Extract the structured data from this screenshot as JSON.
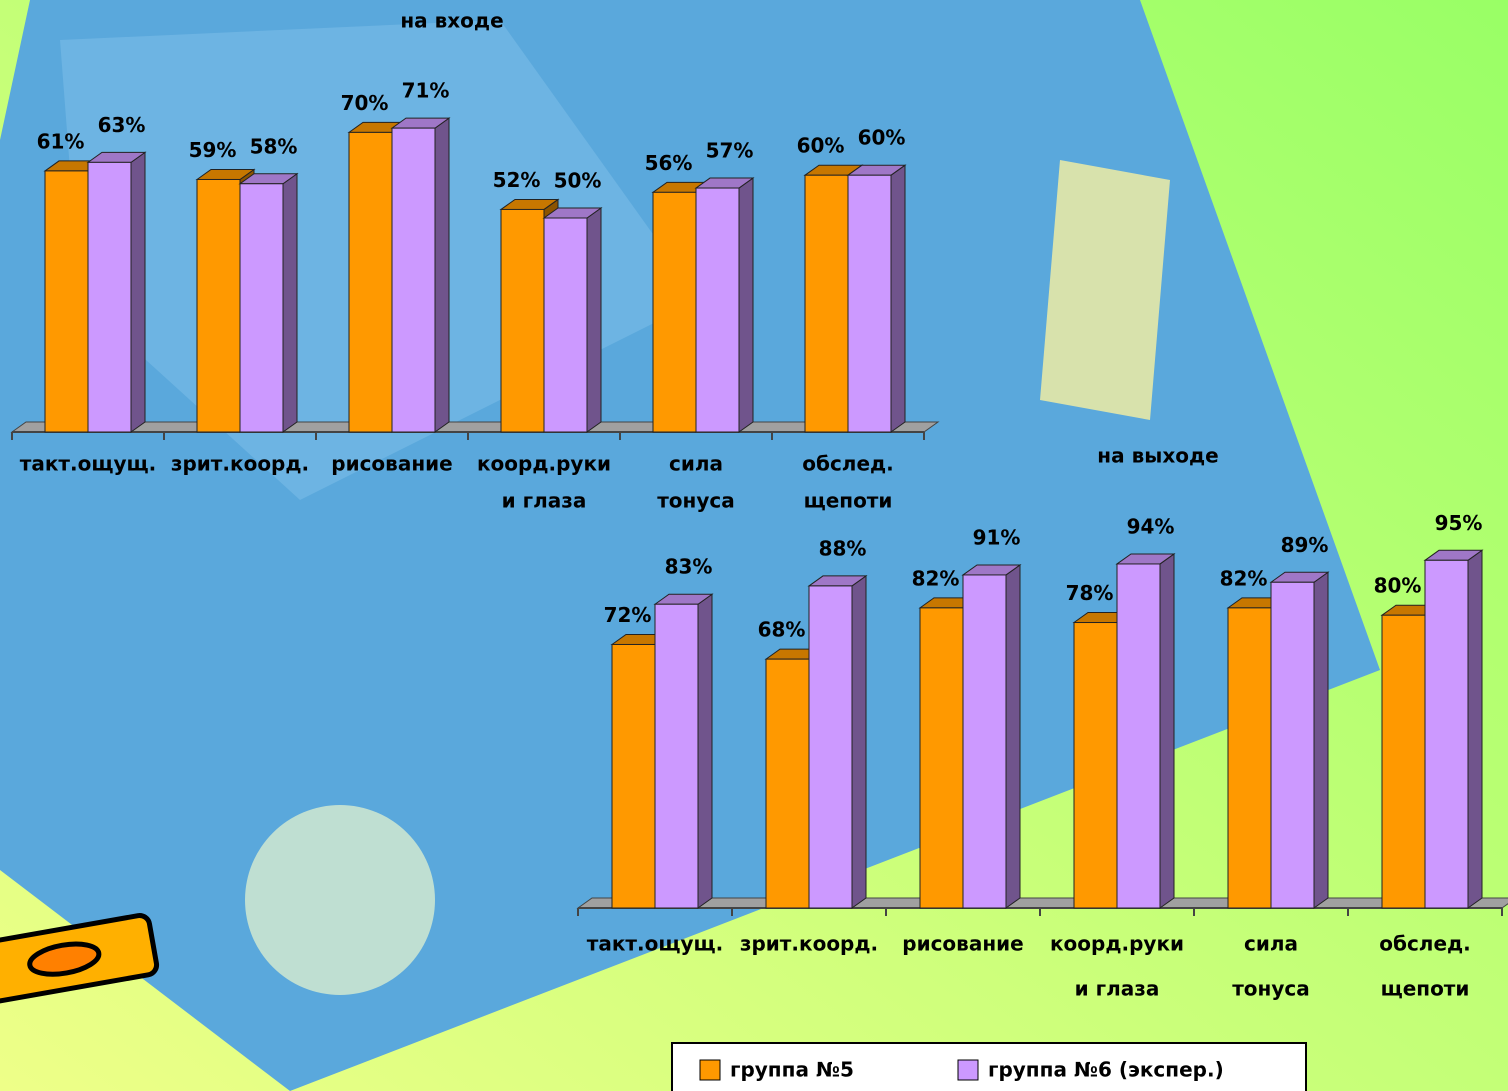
{
  "chart_data": [
    {
      "type": "bar3d",
      "title": "на входе",
      "categories": [
        [
          "такт.ощущ."
        ],
        [
          "зрит.коорд."
        ],
        [
          "рисование"
        ],
        [
          "коорд.руки",
          "и глаза"
        ],
        [
          "сила",
          "тонуса"
        ],
        [
          "обслед.",
          "щепоти"
        ]
      ],
      "series": [
        {
          "color": "#ff9900",
          "values": [
            61,
            59,
            70,
            52,
            56,
            60
          ],
          "value_labels": [
            "61%",
            "59%",
            "70%",
            "52%",
            "56%",
            "60%"
          ]
        },
        {
          "color": "#cc99ff",
          "values": [
            63,
            58,
            71,
            50,
            57,
            60
          ],
          "value_labels": [
            "63%",
            "58%",
            "71%",
            "50%",
            "57%",
            "60%"
          ]
        }
      ]
    },
    {
      "type": "bar3d",
      "title": "на выходе",
      "categories": [
        [
          "такт.ощущ."
        ],
        [
          "зрит.коорд."
        ],
        [
          "рисование"
        ],
        [
          "коорд.руки",
          "и глаза"
        ],
        [
          "сила",
          "тонуса"
        ],
        [
          "обслед.",
          "щепоти"
        ]
      ],
      "series": [
        {
          "name": "группа №5",
          "color": "#ff9900",
          "values": [
            72,
            68,
            82,
            78,
            82,
            80
          ],
          "value_labels": [
            "72%",
            "68%",
            "82%",
            "78%",
            "82%",
            "80%"
          ]
        },
        {
          "name": "группа №6 (экспер.)",
          "color": "#cc99ff",
          "values": [
            83,
            88,
            91,
            94,
            89,
            95
          ],
          "value_labels": [
            "83%",
            "88%",
            "91%",
            "94%",
            "89%",
            "95%"
          ]
        }
      ]
    }
  ]
}
